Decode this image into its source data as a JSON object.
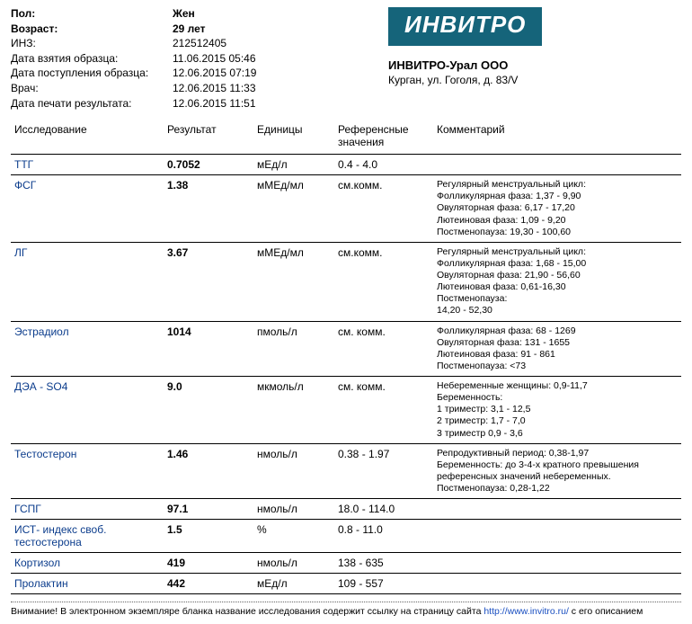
{
  "patient": {
    "sex_label": "Пол:",
    "sex_value": "Жен",
    "age_label": "Возраст:",
    "age_value": "29 лет",
    "inz_label": "ИНЗ:",
    "inz_value": "212512405",
    "sample_taken_label": "Дата взятия образца:",
    "sample_taken_value": "11.06.2015 05:46",
    "sample_received_label": "Дата поступления образца:",
    "sample_received_value": "12.06.2015 07:19",
    "doctor_label": "Врач:",
    "doctor_value": "12.06.2015 11:33",
    "print_label": "Дата печати результата:",
    "print_value": "12.06.2015 11:51"
  },
  "lab": {
    "logo_text": "ИНВИТРО",
    "org_name": "ИНВИТРО-Урал ООО",
    "org_addr": "Курган, ул. Гоголя, д. 83/V"
  },
  "columns": {
    "test": "Исследование",
    "result": "Результат",
    "unit": "Единицы",
    "ref": "Референсные значения",
    "comment": "Комментарий"
  },
  "rows": [
    {
      "name": "ТТГ",
      "result": "0.7052",
      "unit": "мЕд/л",
      "ref": "0.4 - 4.0",
      "comment": "",
      "thick": true
    },
    {
      "name": "ФСГ",
      "result": "1.38",
      "unit": "мМЕд/мл",
      "ref": "см.комм.",
      "comment": "Регулярный менструальный цикл:\nФолликулярная фаза: 1,37 - 9,90\nОвуляторная фаза: 6,17 - 17,20\nЛютеиновая фаза: 1,09 - 9,20\nПостменопауза: 19,30 - 100,60"
    },
    {
      "name": "ЛГ",
      "result": "3.67",
      "unit": "мМЕд/мл",
      "ref": "см.комм.",
      "comment": "Регулярный менструальный цикл:\nФолликулярная фаза: 1,68 - 15,00\nОвуляторная фаза: 21,90 - 56,60\nЛютеиновая фаза: 0,61-16,30\nПостменопауза:\n14,20 - 52,30"
    },
    {
      "name": "Эстрадиол",
      "result": "1014",
      "unit": "пмоль/л",
      "ref": "см. комм.",
      "comment": "Фолликулярная фаза: 68 - 1269\nОвуляторная фаза: 131 - 1655\nЛютеиновая фаза: 91 - 861\nПостменопауза: <73"
    },
    {
      "name": "ДЭА - SO4",
      "result": "9.0",
      "unit": "мкмоль/л",
      "ref": "см. комм.",
      "comment": "Небеременные женщины: 0,9-11,7\nБеременность:\n1 триместр: 3,1 - 12,5\n2 триместр: 1,7 - 7,0\n3 триместр 0,9 - 3,6"
    },
    {
      "name": "Тестостерон",
      "result": "1.46",
      "unit": "нмоль/л",
      "ref": "0.38 - 1.97",
      "comment": "Репродуктивный период: 0,38-1,97\nБеременность: до 3-4-х кратного превышения референсных значений небеременных.\nПостменопауза: 0,28-1,22"
    },
    {
      "name": "ГСПГ",
      "result": "97.1",
      "unit": "нмоль/л",
      "ref": "18.0 - 114.0",
      "comment": "",
      "thick": true
    },
    {
      "name": "ИСТ- индекс своб. тестостерона",
      "result": "1.5",
      "unit": "%",
      "ref": "0.8 - 11.0",
      "comment": "",
      "nolink": true
    },
    {
      "name": "Кортизол",
      "result": "419",
      "unit": "нмоль/л",
      "ref": "138 - 635",
      "comment": ""
    },
    {
      "name": "Пролактин",
      "result": "442",
      "unit": "мЕд/л",
      "ref": "109 - 557",
      "comment": "",
      "thick": true
    }
  ],
  "footer": {
    "prefix": "Внимание! В электронном экземпляре бланка название исследования содержит ссылку на страницу сайта ",
    "link_text": "http://www.invitro.ru/",
    "suffix": " с его описанием"
  }
}
